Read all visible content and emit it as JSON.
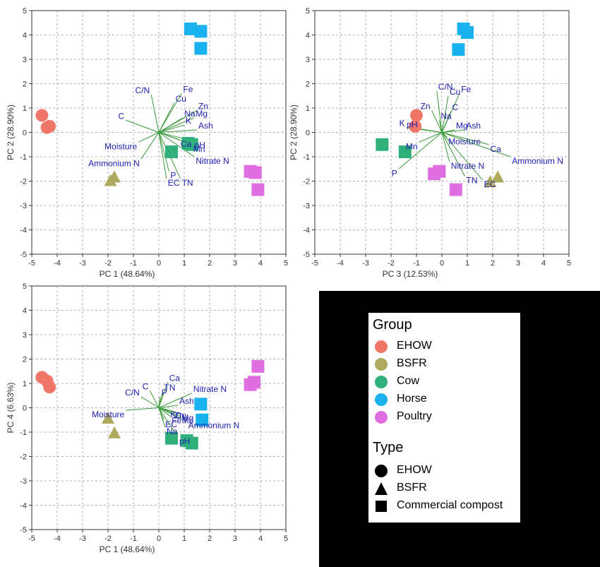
{
  "colors": {
    "EHOW": "#f0766a",
    "BSFR": "#aeaa5e",
    "Cow": "#2fb07a",
    "Horse": "#19b2ee",
    "Poultry": "#df6fe0",
    "vector": "#3a9a3a",
    "vector_label": "#1c1cb0"
  },
  "chart_data": [
    {
      "type": "scatter",
      "title": "",
      "xlabel": "PC 1 (48.64%)",
      "ylabel": "PC 2 (28.90%)",
      "xlim": [
        -5,
        5
      ],
      "ylim": [
        -5,
        5
      ],
      "xticks": [
        "-5",
        "-4",
        "-3",
        "-2",
        "-1",
        "0",
        "1",
        "2",
        "3",
        "4",
        "5"
      ],
      "yticks": [
        "-5",
        "-4",
        "-3",
        "-2",
        "-1",
        "0",
        "1",
        "2",
        "3",
        "4",
        "5"
      ],
      "grid": true,
      "series": [
        {
          "name": "EHOW",
          "group": "EHOW",
          "shape": "circle",
          "points": [
            [
              -4.6,
              0.7
            ],
            [
              -4.4,
              0.2
            ],
            [
              -4.3,
              0.25
            ]
          ]
        },
        {
          "name": "BSFR",
          "group": "BSFR",
          "shape": "triangle",
          "points": [
            [
              -1.9,
              -2.0
            ],
            [
              -1.75,
              -1.85
            ]
          ]
        },
        {
          "name": "Cow",
          "group": "Cow",
          "shape": "square",
          "points": [
            [
              0.5,
              -0.8
            ],
            [
              1.15,
              -0.45
            ],
            [
              1.3,
              -0.5
            ]
          ]
        },
        {
          "name": "Horse",
          "group": "Horse",
          "shape": "square",
          "points": [
            [
              1.25,
              4.25
            ],
            [
              1.65,
              4.15
            ],
            [
              1.65,
              3.45
            ]
          ]
        },
        {
          "name": "Poultry",
          "group": "Poultry",
          "shape": "square",
          "points": [
            [
              3.6,
              -1.6
            ],
            [
              3.8,
              -1.65
            ],
            [
              3.9,
              -2.35
            ]
          ]
        }
      ],
      "loadings": [
        {
          "label": "Fe",
          "x": 0.9,
          "y": 1.6
        },
        {
          "label": "C/N",
          "x": -0.3,
          "y": 1.55
        },
        {
          "label": "Cu",
          "x": 0.6,
          "y": 1.2
        },
        {
          "label": "Zn",
          "x": 1.5,
          "y": 0.9
        },
        {
          "label": "Na",
          "x": 0.95,
          "y": 0.6
        },
        {
          "label": "Mg",
          "x": 1.4,
          "y": 0.6
        },
        {
          "label": "C",
          "x": -1.3,
          "y": 0.5
        },
        {
          "label": "K",
          "x": 1.0,
          "y": 0.3
        },
        {
          "label": "Ash",
          "x": 1.5,
          "y": 0.1
        },
        {
          "label": "Moisture",
          "x": -0.8,
          "y": -0.4
        },
        {
          "label": "Ca",
          "x": 0.8,
          "y": -0.3
        },
        {
          "label": "pH",
          "x": 1.35,
          "y": -0.35
        },
        {
          "label": "Mn",
          "x": 1.3,
          "y": -0.5
        },
        {
          "label": "Ammonium N",
          "x": -0.7,
          "y": -1.1
        },
        {
          "label": "Nitrate N",
          "x": 1.4,
          "y": -1.0
        },
        {
          "label": "P",
          "x": 0.4,
          "y": -1.6
        },
        {
          "label": "EC",
          "x": 0.3,
          "y": -1.9
        },
        {
          "label": "TN",
          "x": 0.85,
          "y": -1.9
        }
      ]
    },
    {
      "type": "scatter",
      "title": "",
      "xlabel": "PC 3 (12.53%)",
      "ylabel": "PC 2 (28.90%)",
      "xlim": [
        -5,
        5
      ],
      "ylim": [
        -5,
        5
      ],
      "xticks": [
        "-5",
        "-4",
        "-3",
        "-2",
        "-1",
        "0",
        "1",
        "2",
        "3",
        "4",
        "5"
      ],
      "yticks": [
        "-5",
        "-4",
        "-3",
        "-2",
        "-1",
        "0",
        "1",
        "2",
        "3",
        "4",
        "5"
      ],
      "grid": true,
      "series": [
        {
          "name": "EHOW",
          "group": "EHOW",
          "shape": "circle",
          "points": [
            [
              -1.0,
              0.7
            ],
            [
              -1.05,
              0.25
            ]
          ]
        },
        {
          "name": "BSFR",
          "group": "BSFR",
          "shape": "triangle",
          "points": [
            [
              1.9,
              -2.05
            ],
            [
              2.2,
              -1.85
            ]
          ]
        },
        {
          "name": "Cow",
          "group": "Cow",
          "shape": "square",
          "points": [
            [
              -2.35,
              -0.5
            ],
            [
              -1.45,
              -0.8
            ]
          ]
        },
        {
          "name": "Horse",
          "group": "Horse",
          "shape": "square",
          "points": [
            [
              0.85,
              4.25
            ],
            [
              1.0,
              4.1
            ],
            [
              0.65,
              3.4
            ]
          ]
        },
        {
          "name": "Poultry",
          "group": "Poultry",
          "shape": "square",
          "points": [
            [
              -0.3,
              -1.7
            ],
            [
              -0.1,
              -1.6
            ],
            [
              0.55,
              -2.35
            ]
          ]
        }
      ],
      "loadings": [
        {
          "label": "Fe",
          "x": 0.7,
          "y": 1.6
        },
        {
          "label": "C/N",
          "x": -0.2,
          "y": 1.7
        },
        {
          "label": "Cu",
          "x": 0.25,
          "y": 1.5
        },
        {
          "label": "Zn",
          "x": -0.4,
          "y": 0.9
        },
        {
          "label": "C",
          "x": 0.35,
          "y": 0.85
        },
        {
          "label": "Na",
          "x": -0.1,
          "y": 0.5
        },
        {
          "label": "K",
          "x": -1.4,
          "y": 0.2
        },
        {
          "label": "pH",
          "x": -0.9,
          "y": 0.15
        },
        {
          "label": "Mg",
          "x": 0.5,
          "y": 0.1
        },
        {
          "label": "Ash",
          "x": 0.9,
          "y": 0.1
        },
        {
          "label": "Moisture",
          "x": 0.2,
          "y": -0.2
        },
        {
          "label": "Mn",
          "x": -0.9,
          "y": -0.4
        },
        {
          "label": "Ca",
          "x": 1.85,
          "y": -0.5
        },
        {
          "label": "Ammonium N",
          "x": 2.7,
          "y": -1.0
        },
        {
          "label": "Nitrate N",
          "x": 0.3,
          "y": -1.2
        },
        {
          "label": "P",
          "x": -1.7,
          "y": -1.5
        },
        {
          "label": "TN",
          "x": 0.9,
          "y": -1.8
        },
        {
          "label": "EC",
          "x": 1.6,
          "y": -1.95
        }
      ]
    },
    {
      "type": "scatter",
      "title": "",
      "xlabel": "PC 1 (48.64%)",
      "ylabel": "PC 4 (6.63%)",
      "xlim": [
        -5,
        5
      ],
      "ylim": [
        -5,
        5
      ],
      "xticks": [
        "-5",
        "-4",
        "-3",
        "-2",
        "-1",
        "0",
        "1",
        "2",
        "3",
        "4",
        "5"
      ],
      "yticks": [
        "-5",
        "-4",
        "-3",
        "-2",
        "-1",
        "0",
        "1",
        "2",
        "3",
        "4",
        "5"
      ],
      "grid": true,
      "series": [
        {
          "name": "EHOW",
          "group": "EHOW",
          "shape": "circle",
          "points": [
            [
              -4.6,
              1.25
            ],
            [
              -4.4,
              1.1
            ],
            [
              -4.3,
              0.85
            ]
          ]
        },
        {
          "name": "BSFR",
          "group": "BSFR",
          "shape": "triangle",
          "points": [
            [
              -2.0,
              -0.45
            ],
            [
              -1.75,
              -1.05
            ]
          ]
        },
        {
          "name": "Cow",
          "group": "Cow",
          "shape": "square",
          "points": [
            [
              0.5,
              -1.25
            ],
            [
              1.1,
              -1.35
            ],
            [
              1.3,
              -1.45
            ]
          ]
        },
        {
          "name": "Horse",
          "group": "Horse",
          "shape": "square",
          "points": [
            [
              1.65,
              0.15
            ],
            [
              1.7,
              -0.5
            ]
          ]
        },
        {
          "name": "Poultry",
          "group": "Poultry",
          "shape": "square",
          "points": [
            [
              3.6,
              0.95
            ],
            [
              3.75,
              1.05
            ],
            [
              3.9,
              1.7
            ]
          ]
        }
      ],
      "loadings": [
        {
          "label": "Ca",
          "x": 0.35,
          "y": 1.05
        },
        {
          "label": "C",
          "x": -0.35,
          "y": 0.7
        },
        {
          "label": "TN",
          "x": 0.15,
          "y": 0.65
        },
        {
          "label": "C/N",
          "x": -0.7,
          "y": 0.45
        },
        {
          "label": "P",
          "x": 0.05,
          "y": 0.45
        },
        {
          "label": "Nitrate N",
          "x": 1.3,
          "y": 0.6
        },
        {
          "label": "Moisture",
          "x": -1.3,
          "y": -0.1
        },
        {
          "label": "Ash",
          "x": 0.75,
          "y": 0.1
        },
        {
          "label": "K",
          "x": 0.4,
          "y": -0.1
        },
        {
          "label": "Cu",
          "x": 0.6,
          "y": -0.15
        },
        {
          "label": "Zn",
          "x": 0.55,
          "y": -0.15
        },
        {
          "label": "Mg",
          "x": 0.85,
          "y": -0.25
        },
        {
          "label": "Fe",
          "x": 0.45,
          "y": -0.35
        },
        {
          "label": "Mn",
          "x": 0.85,
          "y": -0.35
        },
        {
          "label": "EC",
          "x": 0.2,
          "y": -0.5
        },
        {
          "label": "Ammonium N",
          "x": 1.1,
          "y": -0.55
        },
        {
          "label": "Na",
          "x": 0.25,
          "y": -0.8
        },
        {
          "label": "pH",
          "x": 0.75,
          "y": -1.2
        }
      ]
    }
  ],
  "legend": {
    "group_title": "Group",
    "groups": [
      "EHOW",
      "BSFR",
      "Cow",
      "Horse",
      "Poultry"
    ],
    "type_title": "Type",
    "types": [
      {
        "label": "EHOW",
        "shape": "circle"
      },
      {
        "label": "BSFR",
        "shape": "triangle"
      },
      {
        "label": "Commercial compost",
        "shape": "square"
      }
    ]
  }
}
